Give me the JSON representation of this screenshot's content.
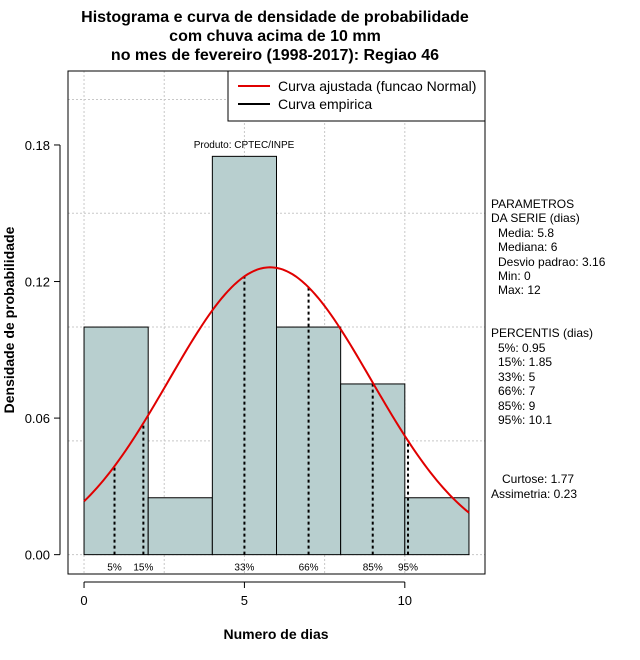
{
  "chart_data": {
    "type": "histogram",
    "title_lines": [
      "Histograma e curva de densidade de probabilidade",
      "com chuva acima de 10 mm",
      "no mes de fevereiro (1998-2017): Regiao 46"
    ],
    "xlabel": "Numero de dias",
    "ylabel": "Densidade de probabilidade",
    "xlim": [
      -0.5,
      12.5
    ],
    "ylim": [
      -0.0085,
      0.2125
    ],
    "x_ticks": [
      0,
      5,
      10
    ],
    "y_ticks": [
      0.0,
      0.06,
      0.12,
      0.18
    ],
    "y_tick_labels": [
      "0.00",
      "0.06",
      "0.12",
      "0.18"
    ],
    "grid": true,
    "bar_color": "#b8cfcf",
    "bins": [
      {
        "x0": 0,
        "x1": 2,
        "density": 0.1
      },
      {
        "x0": 2,
        "x1": 4,
        "density": 0.025
      },
      {
        "x0": 4,
        "x1": 6,
        "density": 0.175
      },
      {
        "x0": 6,
        "x1": 8,
        "density": 0.1
      },
      {
        "x0": 8,
        "x1": 10,
        "density": 0.075
      },
      {
        "x0": 10,
        "x1": 12,
        "density": 0.025
      }
    ],
    "fitted_curve": {
      "name": "Curva ajustada (funcao Normal)",
      "color": "#e00000",
      "mean": 5.8,
      "sd": 3.16,
      "x_range": [
        0,
        12
      ]
    },
    "empirical_curve": {
      "name": "Curva empirica",
      "color": "#000000"
    },
    "legend_position": "top-right",
    "percentile_lines": [
      {
        "label": "5%",
        "x": 0.95
      },
      {
        "label": "15%",
        "x": 1.85
      },
      {
        "label": "33%",
        "x": 5
      },
      {
        "label": "66%",
        "x": 7
      },
      {
        "label": "85%",
        "x": 9
      },
      {
        "label": "95%",
        "x": 10.1
      }
    ],
    "annotation": "Produto: CPTEC/INPE"
  },
  "side_panel": {
    "params_title_1": "PARAMETROS",
    "params_title_2": "DA SERIE (dias)",
    "params": [
      "Media: 5.8",
      "Mediana: 6",
      "Desvio padrao: 3.16",
      "Min: 0",
      "Max: 12"
    ],
    "percentis_title": "PERCENTIS (dias)",
    "percentis": [
      "5%: 0.95",
      "15%: 1.85",
      "33%: 5",
      "66%: 7",
      "85%: 9",
      "95%: 10.1"
    ],
    "curtose": "Curtose: 1.77",
    "assimetria": "Assimetria: 0.23"
  }
}
